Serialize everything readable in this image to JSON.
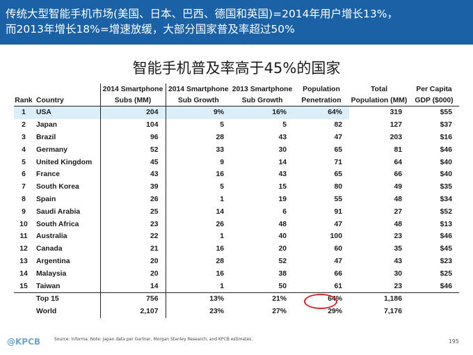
{
  "header": {
    "line1": "传统大型智能手机市场(美国、日本、巴西、德国和英国)=2014年用户增长13%，",
    "line2": "而2013年增长18%=增速放缓，大部分国家普及率超过50%"
  },
  "subtitle": "智能手机普及率高于45%的国家",
  "table": {
    "header_row1": [
      "",
      "",
      "2014 Smartphone",
      "2014 Smartphone",
      "2013 Smartphone",
      "Population",
      "Total",
      "Per Capita"
    ],
    "header_row2": [
      "Rank",
      "Country",
      "Subs (MM)",
      "Sub Growth",
      "Sub Growth",
      "Penetration",
      "Population (MM)",
      "GDP ($000)"
    ],
    "rows": [
      [
        "1",
        "USA",
        "204",
        "9%",
        "16%",
        "64%",
        "319",
        "$55"
      ],
      [
        "2",
        "Japan",
        "104",
        "5",
        "5",
        "82",
        "127",
        "$37"
      ],
      [
        "3",
        "Brazil",
        "96",
        "28",
        "43",
        "47",
        "203",
        "$16"
      ],
      [
        "4",
        "Germany",
        "52",
        "33",
        "30",
        "65",
        "81",
        "$46"
      ],
      [
        "5",
        "United Kingdom",
        "45",
        "9",
        "14",
        "71",
        "64",
        "$40"
      ],
      [
        "6",
        "France",
        "43",
        "16",
        "43",
        "65",
        "66",
        "$40"
      ],
      [
        "7",
        "South Korea",
        "39",
        "5",
        "15",
        "80",
        "49",
        "$35"
      ],
      [
        "8",
        "Spain",
        "26",
        "1",
        "19",
        "55",
        "48",
        "$34"
      ],
      [
        "9",
        "Saudi Arabia",
        "25",
        "14",
        "6",
        "91",
        "27",
        "$52"
      ],
      [
        "10",
        "South Africa",
        "23",
        "26",
        "48",
        "47",
        "48",
        "$13"
      ],
      [
        "11",
        "Australia",
        "22",
        "1",
        "40",
        "100",
        "23",
        "$46"
      ],
      [
        "12",
        "Canada",
        "21",
        "16",
        "20",
        "60",
        "35",
        "$45"
      ],
      [
        "13",
        "Argentina",
        "20",
        "28",
        "52",
        "47",
        "43",
        "$23"
      ],
      [
        "14",
        "Malaysia",
        "20",
        "16",
        "38",
        "66",
        "30",
        "$25"
      ],
      [
        "15",
        "Taiwan",
        "14",
        "1",
        "50",
        "61",
        "23",
        "$46"
      ]
    ],
    "summary": [
      [
        "",
        "Top 15",
        "756",
        "13%",
        "21%",
        "64%",
        "1,186",
        ""
      ],
      [
        "",
        "World",
        "2,107",
        "23%",
        "27%",
        "29%",
        "7,176",
        ""
      ]
    ]
  },
  "footer": {
    "logo": "@KPCB",
    "source": "Source: Informa. Note: Japan data per Gartner, Morgan Stanley Research, and KPCB estimates.",
    "page": "195"
  },
  "colors": {
    "header_bg": "#1a62a5",
    "highlight_row": "#dceef8",
    "circle": "#d8222a",
    "logo": "#6fa5cf"
  }
}
